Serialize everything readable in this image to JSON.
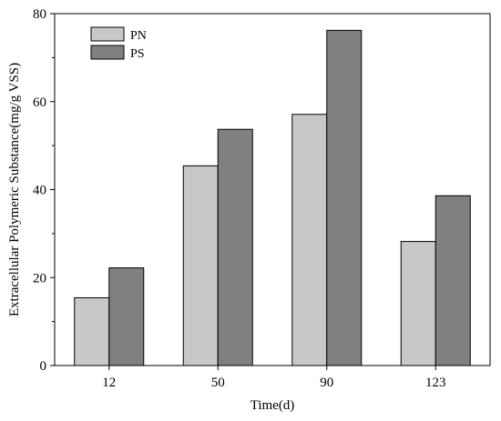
{
  "chart_data": {
    "type": "bar",
    "title": "",
    "xlabel": "Time(d)",
    "ylabel": "Extracellular Polymeric Substance(mg/g VSS)",
    "categories": [
      "12",
      "50",
      "90",
      "123"
    ],
    "series": [
      {
        "name": "PN",
        "values": [
          15.4,
          45.4,
          57.1,
          28.2
        ],
        "color": "#c8c8c8"
      },
      {
        "name": "PS",
        "values": [
          22.2,
          53.7,
          76.2,
          38.6
        ],
        "color": "#808080"
      }
    ],
    "ylim": [
      0,
      80
    ],
    "yticks": [
      0,
      20,
      40,
      60,
      80
    ],
    "grid": false,
    "legend_position": "top-left"
  }
}
